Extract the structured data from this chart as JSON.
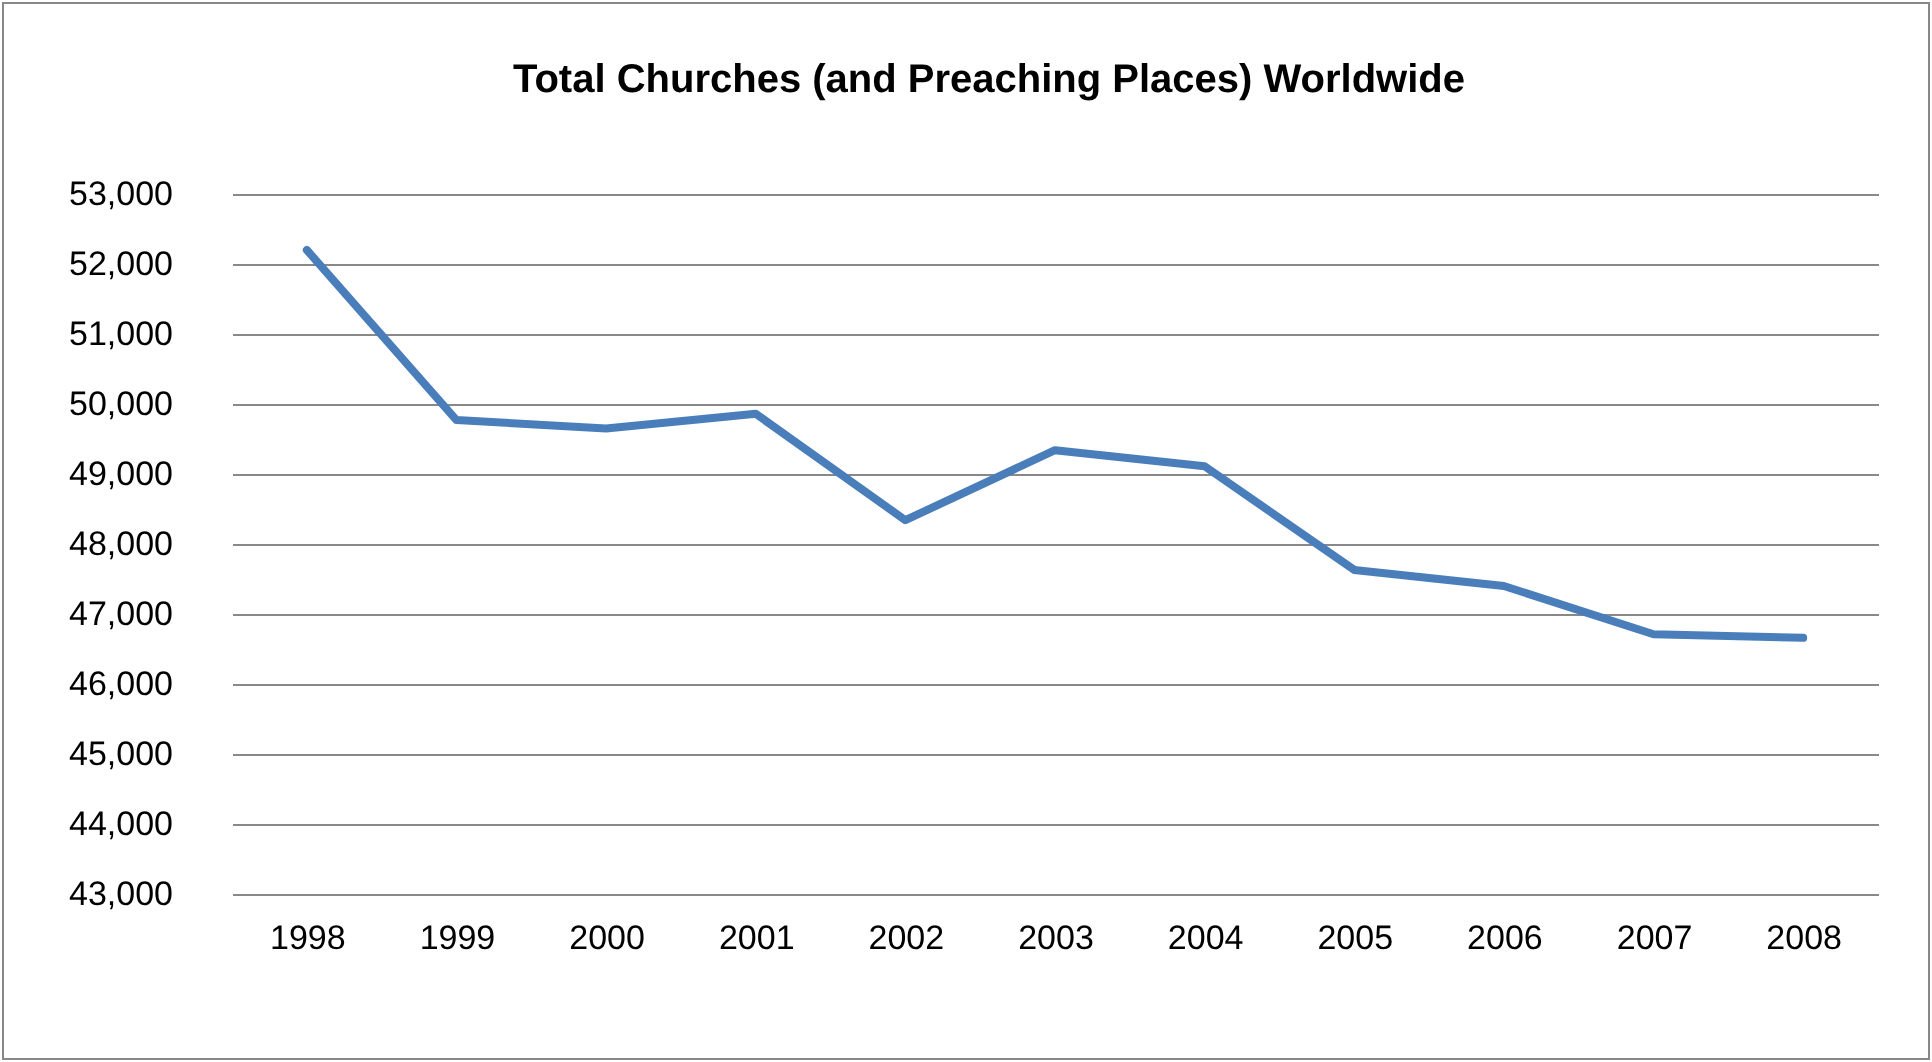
{
  "chart_data": {
    "type": "line",
    "title": "Total Churches (and Preaching Places) Worldwide",
    "categories": [
      "1998",
      "1999",
      "2000",
      "2001",
      "2002",
      "2003",
      "2004",
      "2005",
      "2006",
      "2007",
      "2008"
    ],
    "series": [
      {
        "color": "#4a7ebb",
        "values": [
          52200,
          49770,
          49650,
          49860,
          48340,
          49340,
          49110,
          47630,
          47400,
          46710,
          46660
        ]
      }
    ],
    "ylim": [
      43000,
      53000
    ],
    "yticks": [
      {
        "value": 43000,
        "label": "43,000"
      },
      {
        "value": 44000,
        "label": "44,000"
      },
      {
        "value": 45000,
        "label": "45,000"
      },
      {
        "value": 46000,
        "label": "46,000"
      },
      {
        "value": 47000,
        "label": "47,000"
      },
      {
        "value": 48000,
        "label": "48,000"
      },
      {
        "value": 49000,
        "label": "49,000"
      },
      {
        "value": 50000,
        "label": "50,000"
      },
      {
        "value": 51000,
        "label": "51,000"
      },
      {
        "value": 52000,
        "label": "52,000"
      },
      {
        "value": 53000,
        "label": "53,000"
      }
    ],
    "grid": "y"
  }
}
